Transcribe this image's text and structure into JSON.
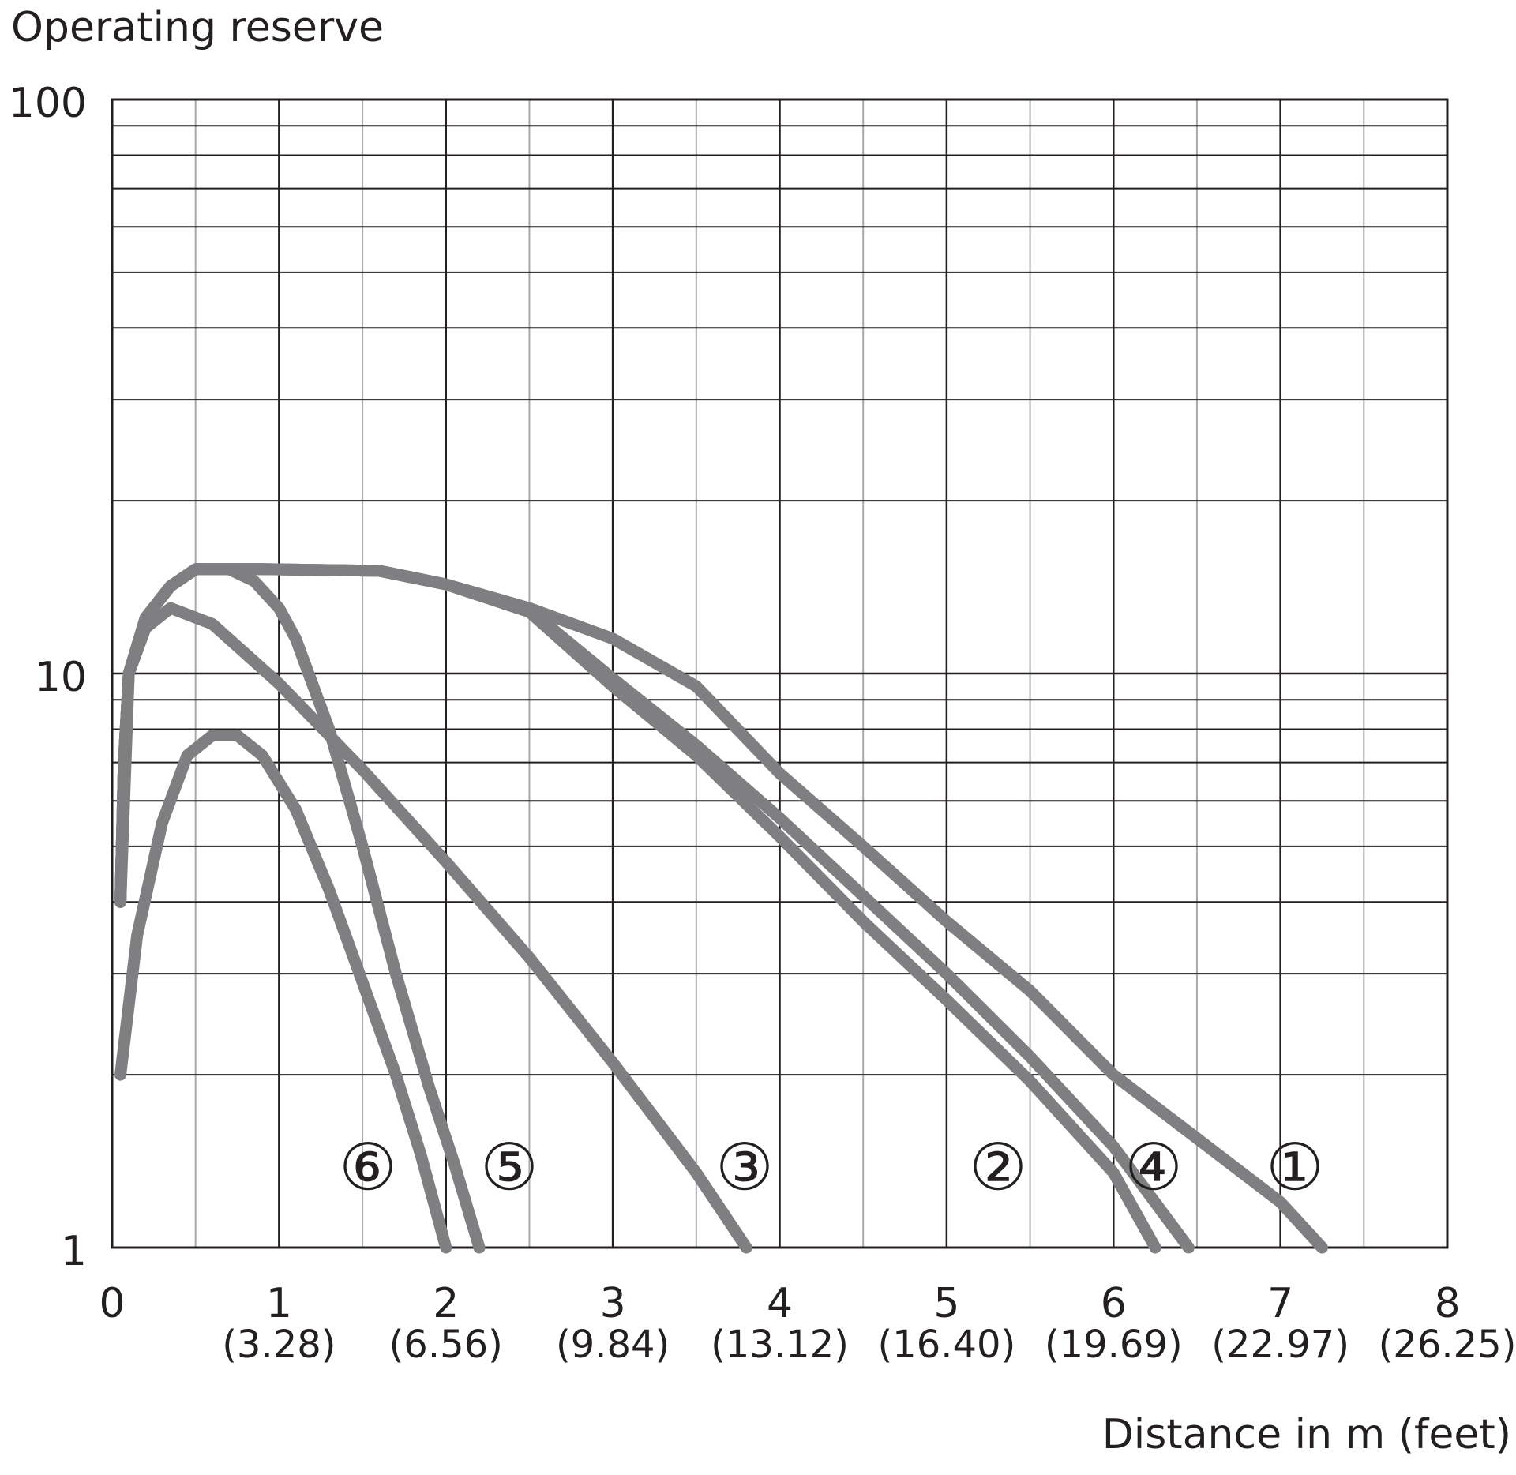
{
  "chart_data": {
    "type": "line",
    "title": "Operating reserve",
    "x_label": "Distance in m (feet)",
    "yscale": "log",
    "xlim": [
      0,
      8
    ],
    "ylim": [
      1,
      100
    ],
    "xticks": [
      0,
      1,
      2,
      3,
      4,
      5,
      6,
      7,
      8
    ],
    "xtick_sublabels": [
      null,
      "(3.28)",
      "(6.56)",
      "(9.84)",
      "(13.12)",
      "(16.40)",
      "(19.69)",
      "(22.97)",
      "(26.25)"
    ],
    "xminor_ticks": [
      0.5,
      1.5,
      2.5,
      3.5,
      4.5,
      5.5,
      6.5,
      7.5
    ],
    "yticks": [
      1,
      10,
      100
    ],
    "yminor_ticks": [
      2,
      3,
      4,
      5,
      6,
      7,
      8,
      9,
      20,
      30,
      40,
      50,
      60,
      70,
      80,
      90
    ],
    "grid": true,
    "series": [
      {
        "name": "①",
        "color": "#7f7f82",
        "x": [
          0.05,
          0.07,
          0.1,
          0.2,
          0.35,
          0.5,
          0.9,
          1.6,
          2,
          2.5,
          3,
          3.5,
          4,
          4.5,
          5,
          5.5,
          6,
          6.5,
          7,
          7.25
        ],
        "values": [
          4.0,
          7,
          10,
          12.5,
          14.2,
          15.2,
          15.2,
          15.1,
          14.3,
          13,
          11.5,
          9.5,
          6.7,
          5,
          3.7,
          2.8,
          2.0,
          1.55,
          1.2,
          1.0
        ]
      },
      {
        "name": "②",
        "color": "#7f7f82",
        "x": [
          0.05,
          0.07,
          0.1,
          0.2,
          0.35,
          0.5,
          0.9,
          1.6,
          2,
          2.5,
          3,
          3.5,
          4,
          4.5,
          5,
          5.5,
          6,
          6.25
        ],
        "values": [
          4.0,
          7,
          10,
          12.5,
          14.2,
          15.2,
          15.2,
          15.1,
          14.3,
          12.8,
          9.5,
          7.2,
          5.2,
          3.7,
          2.7,
          1.95,
          1.35,
          1.0
        ]
      },
      {
        "name": "③",
        "color": "#7f7f82",
        "x": [
          0.05,
          0.1,
          0.2,
          0.35,
          0.6,
          1,
          1.5,
          2,
          2.5,
          3,
          3.5,
          3.8
        ],
        "values": [
          4.0,
          10,
          12,
          13,
          12.2,
          9.6,
          6.8,
          4.7,
          3.2,
          2.1,
          1.35,
          1.0
        ]
      },
      {
        "name": "④",
        "color": "#7f7f82",
        "x": [
          0.05,
          0.07,
          0.1,
          0.2,
          0.35,
          0.5,
          0.9,
          1.6,
          2,
          2.5,
          3,
          3.5,
          4,
          4.5,
          5,
          5.5,
          6,
          6.45
        ],
        "values": [
          4.0,
          7,
          10,
          12.5,
          14.2,
          15.2,
          15.2,
          15.1,
          14.3,
          12.9,
          9.8,
          7.5,
          5.6,
          4.1,
          3.0,
          2.15,
          1.5,
          1.0
        ]
      },
      {
        "name": "⑤",
        "color": "#7f7f82",
        "x": [
          0.05,
          0.07,
          0.1,
          0.2,
          0.35,
          0.5,
          0.7,
          0.85,
          1,
          1.1,
          1.3,
          1.5,
          1.7,
          1.9,
          2.05,
          2.2
        ],
        "values": [
          4.0,
          7,
          10,
          12.5,
          14.2,
          15.2,
          15.2,
          14.5,
          13,
          11.5,
          8,
          5,
          3,
          1.9,
          1.4,
          1.0
        ]
      },
      {
        "name": "⑥",
        "color": "#7f7f82",
        "x": [
          0.05,
          0.15,
          0.3,
          0.45,
          0.6,
          0.75,
          0.9,
          1.1,
          1.3,
          1.5,
          1.7,
          1.85,
          2.0
        ],
        "values": [
          2.0,
          3.5,
          5.5,
          7.2,
          7.8,
          7.8,
          7.2,
          5.8,
          4.2,
          2.9,
          2.0,
          1.45,
          1.0
        ]
      }
    ]
  }
}
